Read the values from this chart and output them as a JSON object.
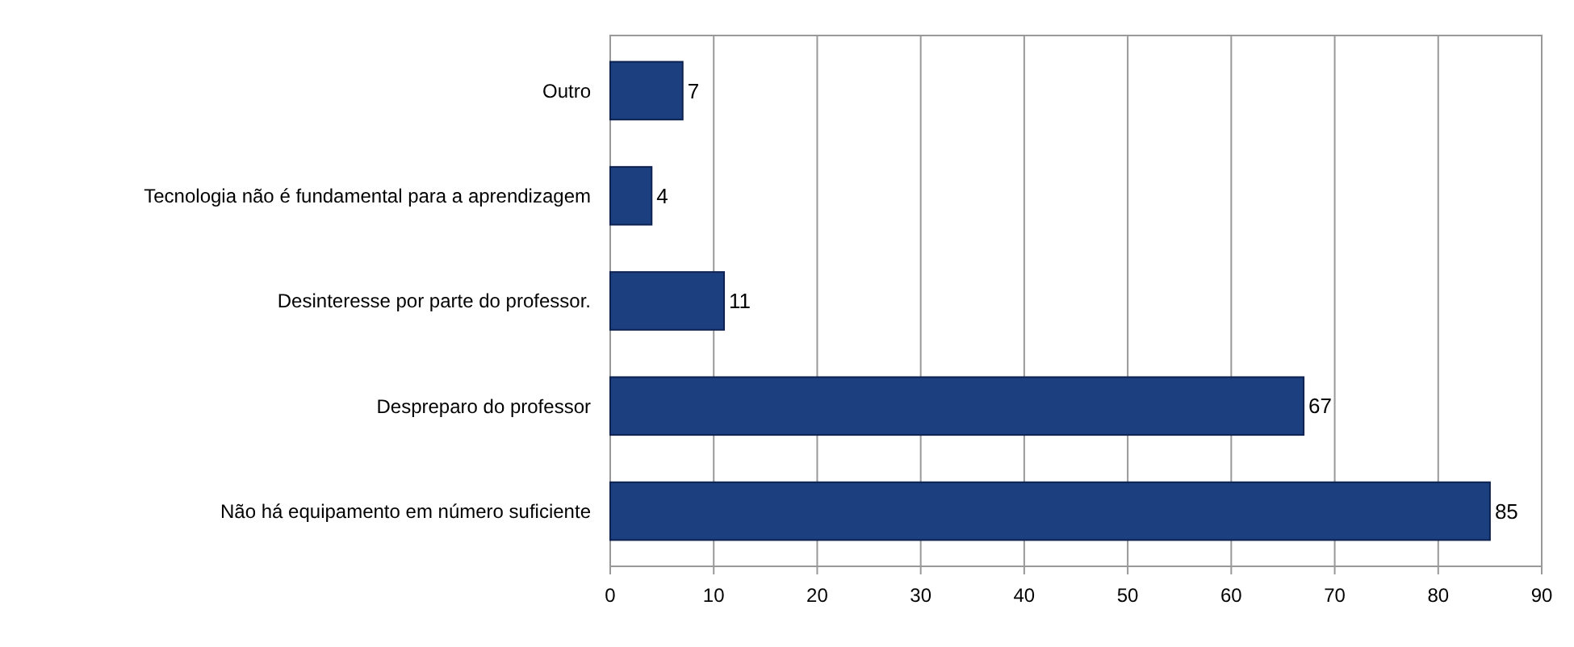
{
  "chart_data": {
    "type": "bar",
    "orientation": "horizontal",
    "categories": [
      "Outro",
      "Tecnologia não é fundamental para a aprendizagem",
      "Desinteresse por parte do professor.",
      "Despreparo do professor",
      "Não há equipamento em número suficiente"
    ],
    "values": [
      7,
      4,
      11,
      67,
      85
    ],
    "color": "#1c3f80",
    "data_labels": true,
    "xlim": [
      0,
      90
    ],
    "xticks": [
      0,
      10,
      20,
      30,
      40,
      50,
      60,
      70,
      80,
      90
    ],
    "grid": "x"
  }
}
